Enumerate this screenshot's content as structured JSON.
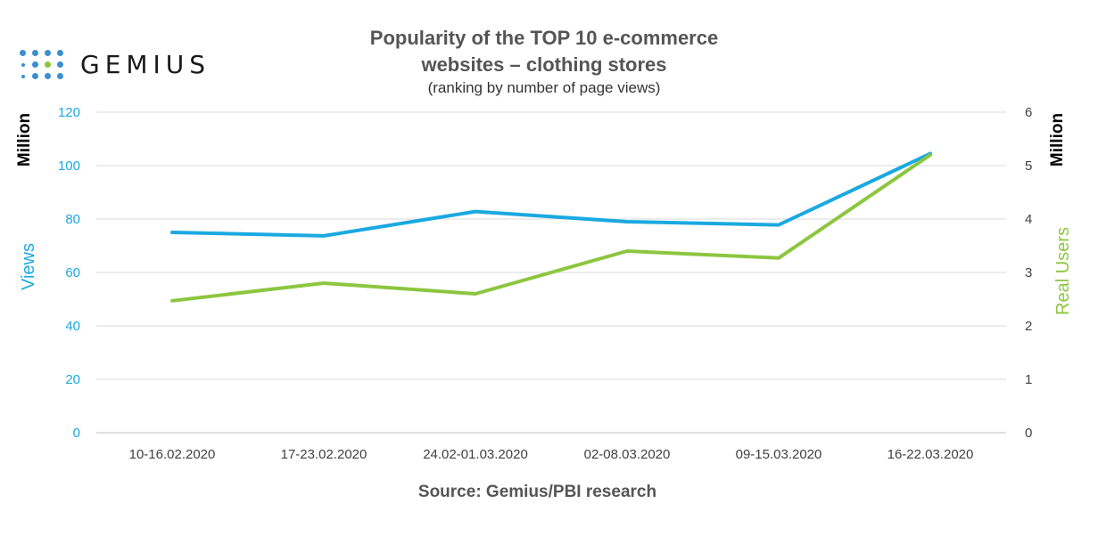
{
  "header": {
    "logo_text": "GEMIUS",
    "title_line1": "Popularity of the TOP 10 e-commerce",
    "title_line2": "websites – clothing stores",
    "subtitle": "(ranking by number of page views)"
  },
  "footer": {
    "source": "Source: Gemius/PBI research"
  },
  "colors": {
    "views": "#1aa9e0",
    "real_users": "#8cc63f",
    "grid": "#d9d9d9",
    "axis_text": "#404040"
  },
  "chart_data": {
    "type": "line",
    "categories": [
      "10-16.02.2020",
      "17-23.02.2020",
      "24.02-01.03.2020",
      "02-08.03.2020",
      "09-15.03.2020",
      "16-22.03.2020"
    ],
    "series": [
      {
        "name": "Views",
        "axis": "left",
        "color": "#1aa9e0",
        "values": [
          75,
          73.7,
          82.8,
          79,
          77.8,
          104.5
        ]
      },
      {
        "name": "Real Users",
        "axis": "right",
        "color": "#8cc63f",
        "values": [
          2.47,
          2.8,
          2.6,
          3.4,
          3.27,
          5.2
        ]
      }
    ],
    "left_axis": {
      "label": "Views",
      "unit": "Million",
      "ylim": [
        0,
        120
      ],
      "ticks": [
        "0",
        "20",
        "40",
        "60",
        "80",
        "100",
        "120"
      ]
    },
    "right_axis": {
      "label": "Real Users",
      "unit": "Million",
      "ylim": [
        0,
        6
      ],
      "ticks": [
        "0",
        "1",
        "2",
        "3",
        "4",
        "5",
        "6"
      ]
    },
    "grid": true
  }
}
